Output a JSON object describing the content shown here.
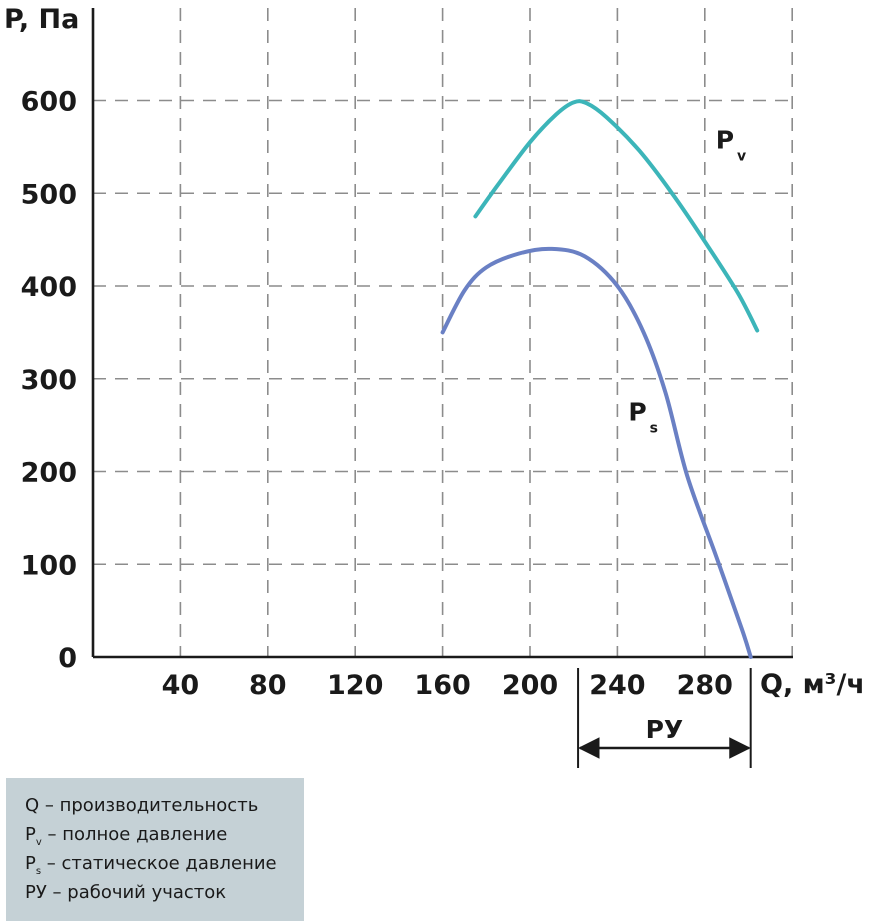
{
  "chart_data": {
    "type": "line",
    "ylabel": "P, Па",
    "xlabel": "Q, м³/ч",
    "xlim": [
      0,
      320
    ],
    "ylim": [
      0,
      600
    ],
    "x_ticks": [
      "40",
      "80",
      "120",
      "160",
      "200",
      "240",
      "280"
    ],
    "y_ticks": [
      "0",
      "100",
      "200",
      "300",
      "400",
      "500",
      "600"
    ],
    "grid": true,
    "series": [
      {
        "name": "Pv",
        "label_main": "P",
        "label_sub": "v",
        "color": "#3cb5b9",
        "points": [
          [
            175,
            475
          ],
          [
            185,
            508
          ],
          [
            200,
            555
          ],
          [
            212,
            585
          ],
          [
            220,
            598
          ],
          [
            226,
            597
          ],
          [
            235,
            582
          ],
          [
            250,
            546
          ],
          [
            265,
            500
          ],
          [
            280,
            448
          ],
          [
            295,
            393
          ],
          [
            304,
            352
          ]
        ]
      },
      {
        "name": "Ps",
        "label_main": "P",
        "label_sub": "s",
        "color": "#6a80c4",
        "points": [
          [
            160,
            350
          ],
          [
            170,
            395
          ],
          [
            180,
            420
          ],
          [
            195,
            435
          ],
          [
            210,
            440
          ],
          [
            225,
            432
          ],
          [
            240,
            400
          ],
          [
            252,
            350
          ],
          [
            262,
            285
          ],
          [
            272,
            195
          ],
          [
            285,
            110
          ],
          [
            297,
            30
          ],
          [
            301,
            0
          ]
        ]
      }
    ],
    "range_marker": {
      "label": "РУ",
      "from": 222,
      "to": 301
    }
  },
  "legend": {
    "items": [
      {
        "sym": "Q",
        "sub": "",
        "text": " – производительность"
      },
      {
        "sym": "P",
        "sub": "v",
        "text": " – полное давление"
      },
      {
        "sym": "P",
        "sub": "s",
        "text": " – статическое давление"
      },
      {
        "sym": "РУ",
        "sub": "",
        "text": " – рабочий участок"
      }
    ]
  }
}
